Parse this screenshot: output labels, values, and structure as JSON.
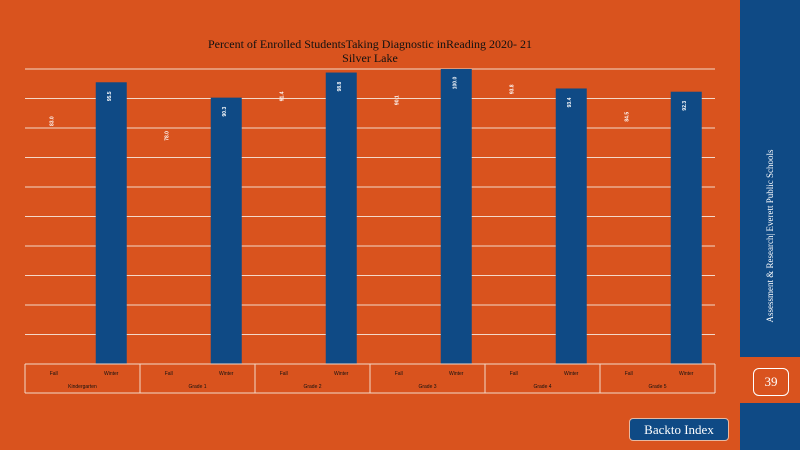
{
  "chart_data": {
    "type": "bar",
    "title": "Percent of Enrolled StudentsTaking Diagnostic inReading 2020- 21",
    "subtitle": "Silver Lake",
    "xlabel": "",
    "ylabel": "",
    "ylim": [
      0,
      100
    ],
    "grid": true,
    "legend": "none",
    "groups": [
      {
        "name": "Kindergarten",
        "bars": [
          {
            "label": "Fall",
            "value": 83.0,
            "text": "83.0"
          },
          {
            "label": "Winter",
            "value": 95.5,
            "text": "95.5"
          }
        ]
      },
      {
        "name": "Grade 1",
        "bars": [
          {
            "label": "Fall",
            "value": 78.0,
            "text": "78.0"
          },
          {
            "label": "Winter",
            "value": 90.3,
            "text": "90.3"
          }
        ]
      },
      {
        "name": "Grade 2",
        "bars": [
          {
            "label": "Fall",
            "value": 91.4,
            "text": "91.4"
          },
          {
            "label": "Winter",
            "value": 98.8,
            "text": "98.8"
          }
        ]
      },
      {
        "name": "Grade 3",
        "bars": [
          {
            "label": "Fall",
            "value": 90.1,
            "text": "90.1"
          },
          {
            "label": "Winter",
            "value": 100.0,
            "text": "100.0"
          }
        ]
      },
      {
        "name": "Grade 4",
        "bars": [
          {
            "label": "Fall",
            "value": 93.8,
            "text": "93.8"
          },
          {
            "label": "Winter",
            "value": 93.4,
            "text": "93.4"
          }
        ]
      },
      {
        "name": "Grade 5",
        "bars": [
          {
            "label": "Fall",
            "value": 84.5,
            "text": "84.5"
          },
          {
            "label": "Winter",
            "value": 92.3,
            "text": "92.3"
          }
        ]
      }
    ]
  },
  "colors": {
    "background": "#d9531e",
    "bar": "#0f4a85",
    "gridline": "#f4d8c8",
    "sidebar": "#0f4a85",
    "text": "#111111"
  },
  "sidebar": {
    "text": "Assessment & Research| Everett Public Schools",
    "page_number": "39"
  },
  "nav": {
    "back_label": "Backto Index"
  }
}
